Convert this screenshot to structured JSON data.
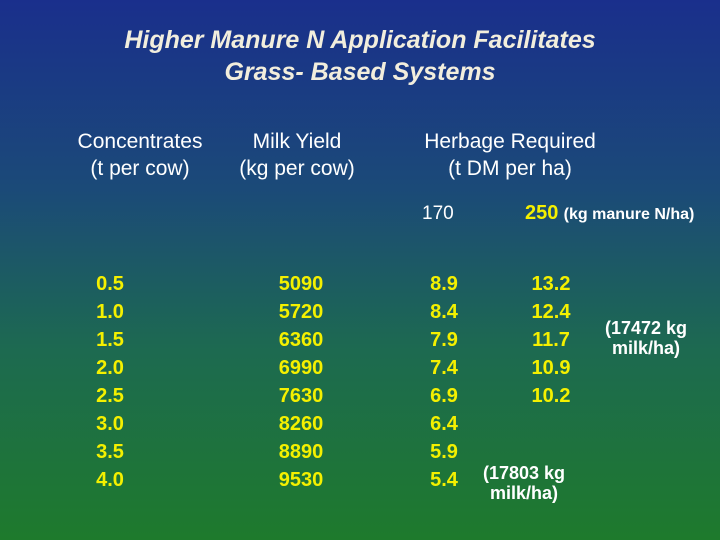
{
  "title": {
    "line1": "Higher Manure N Application Facilitates",
    "line2": "Grass- Based Systems"
  },
  "headers": {
    "concentrates": {
      "line1": "Concentrates",
      "line2": "(t per cow)"
    },
    "milk_yield": {
      "line1": "Milk Yield",
      "line2": "(kg per cow)"
    },
    "herbage": {
      "line1": "Herbage Required",
      "line2": "(t DM per ha)"
    }
  },
  "rates": {
    "low": "170",
    "high": "250",
    "unit": "(kg manure N/ha)"
  },
  "columns": {
    "concentrates": [
      "0.5",
      "1.0",
      "1.5",
      "2.0",
      "2.5",
      "3.0",
      "3.5",
      "4.0"
    ],
    "milk_yield": [
      "5090",
      "5720",
      "6360",
      "6990",
      "7630",
      "8260",
      "8890",
      "9530"
    ],
    "herbage_170": [
      "8.9",
      "8.4",
      "7.9",
      "7.4",
      "6.9",
      "6.4",
      "5.9",
      "5.4"
    ],
    "herbage_250": [
      "13.2",
      "12.4",
      "11.7",
      "10.9",
      "10.2"
    ]
  },
  "notes": {
    "note_250": {
      "line1": "(17472 kg",
      "line2": "milk/ha)"
    },
    "note_170": {
      "line1": "(17803 kg",
      "line2": "milk/ha)"
    }
  },
  "colors": {
    "title": "#f2eedd",
    "values": "#f4f000",
    "headers": "#ffffff"
  }
}
